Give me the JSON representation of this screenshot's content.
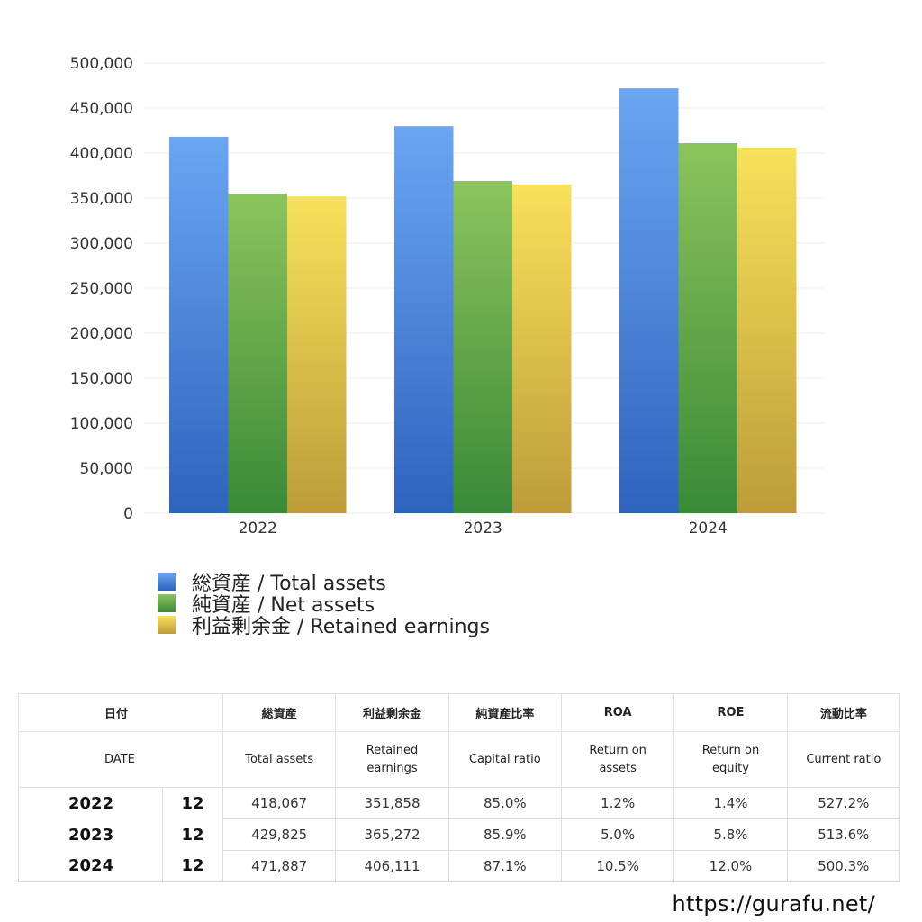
{
  "chart_data": {
    "type": "bar",
    "categories": [
      "2022",
      "2023",
      "2024"
    ],
    "series": [
      {
        "name": "総資産 / Total assets",
        "values": [
          418067,
          429825,
          471887
        ],
        "color_top": "#6aa6f2",
        "color_bottom": "#2f62bd"
      },
      {
        "name": "純資産 / Net assets",
        "values": [
          355000,
          369000,
          411000
        ],
        "color_top": "#8bc45c",
        "color_bottom": "#3a8a37"
      },
      {
        "name": "利益剰余金 / Retained earnings",
        "values": [
          351858,
          365272,
          406111
        ],
        "color_top": "#f8e15a",
        "color_bottom": "#bd9c39"
      }
    ],
    "ylim": [
      0,
      500000
    ],
    "yticks": [
      "0",
      "50,000",
      "100,000",
      "150,000",
      "200,000",
      "250,000",
      "300,000",
      "350,000",
      "400,000",
      "450,000",
      "500,000"
    ],
    "legend_position": "bottom-left",
    "grid": true
  },
  "table": {
    "header_jp": [
      "日付",
      "総資産",
      "利益剰余金",
      "純資産比率",
      "ROA",
      "ROE",
      "流動比率"
    ],
    "header_en": [
      "DATE",
      "Total assets",
      "Retained earnings",
      "Capital ratio",
      "Return on assets",
      "Return on equity",
      "Current ratio"
    ],
    "rows": [
      {
        "year": "2022",
        "month": "12",
        "total_assets": "418,067",
        "retained_earnings": "351,858",
        "capital_ratio": "85.0%",
        "roa": "1.2%",
        "roe": "1.4%",
        "current_ratio": "527.2%"
      },
      {
        "year": "2023",
        "month": "12",
        "total_assets": "429,825",
        "retained_earnings": "365,272",
        "capital_ratio": "85.9%",
        "roa": "5.0%",
        "roe": "5.8%",
        "current_ratio": "513.6%"
      },
      {
        "year": "2024",
        "month": "12",
        "total_assets": "471,887",
        "retained_earnings": "406,111",
        "capital_ratio": "87.1%",
        "roa": "10.5%",
        "roe": "12.0%",
        "current_ratio": "500.3%"
      }
    ]
  },
  "footer": {
    "url": "https://gurafu.net/"
  }
}
